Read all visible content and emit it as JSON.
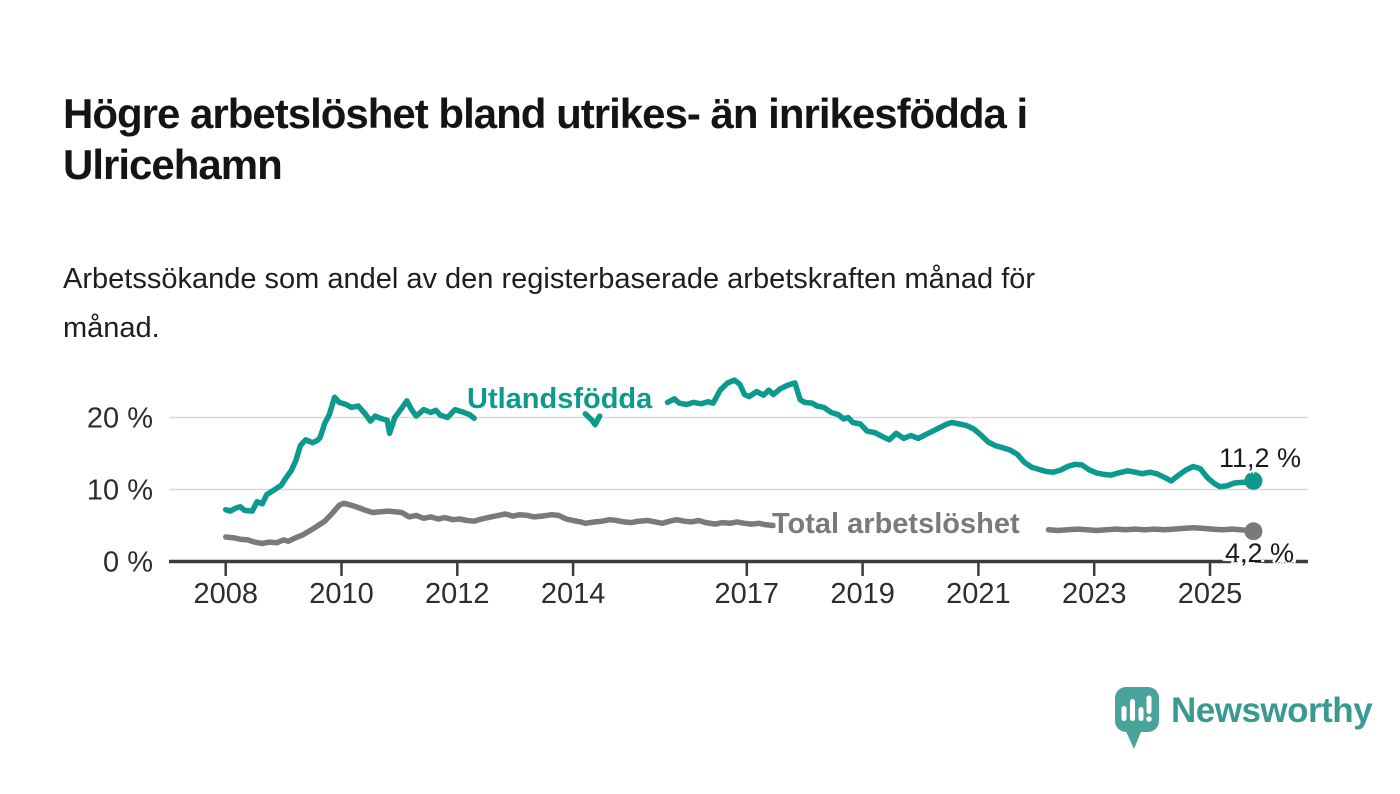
{
  "header": {
    "title_lines": [
      "Högre arbetslöshet bland utrikes- än inrikesfödda i",
      "Ulricehamn"
    ],
    "subtitle_lines": [
      "Arbetssökande som andel av den registerbaserade arbetskraften månad för",
      "månad."
    ]
  },
  "branding": {
    "wordmark": "Newsworthy",
    "logo_icon": "speech-bubble-bar-chart-icon",
    "color": "#3a9a91"
  },
  "chart_data": {
    "type": "line",
    "unit": "%",
    "grid": "horizontal-only",
    "x_axis": {
      "tick_values": [
        2008,
        2010,
        2012,
        2014,
        2017,
        2019,
        2021,
        2023,
        2025
      ],
      "tick_labels": [
        "2008",
        "2010",
        "2012",
        "2014",
        "2017",
        "2019",
        "2021",
        "2023",
        "2025"
      ],
      "range": [
        2007.0,
        2026.0
      ]
    },
    "y_axis": {
      "tick_values": [
        0,
        10,
        20
      ],
      "tick_labels": [
        "0 %",
        "10 %",
        "20 %"
      ],
      "gridline_values": [
        10,
        20
      ],
      "range": [
        0,
        26.5
      ]
    },
    "series": [
      {
        "name": "Utlandsfödda",
        "color": "#0d9a8e",
        "end_value": 11.2,
        "end_value_label": "11,2 %",
        "segments": [
          [
            [
              2008.0,
              7.2
            ],
            [
              2008.08,
              7.0
            ],
            [
              2008.17,
              7.4
            ],
            [
              2008.25,
              7.6
            ],
            [
              2008.33,
              7.1
            ],
            [
              2008.46,
              7.0
            ],
            [
              2008.54,
              8.3
            ],
            [
              2008.63,
              8.0
            ],
            [
              2008.71,
              9.3
            ],
            [
              2008.83,
              9.9
            ],
            [
              2008.96,
              10.6
            ],
            [
              2009.04,
              11.6
            ],
            [
              2009.13,
              12.6
            ],
            [
              2009.21,
              14.0
            ],
            [
              2009.29,
              16.1
            ],
            [
              2009.38,
              16.9
            ],
            [
              2009.5,
              16.5
            ],
            [
              2009.58,
              16.8
            ],
            [
              2009.63,
              17.2
            ],
            [
              2009.71,
              19.2
            ],
            [
              2009.79,
              20.4
            ],
            [
              2009.88,
              22.8
            ],
            [
              2009.96,
              22.1
            ],
            [
              2010.08,
              21.8
            ],
            [
              2010.17,
              21.4
            ],
            [
              2010.29,
              21.6
            ],
            [
              2010.42,
              20.4
            ],
            [
              2010.5,
              19.5
            ],
            [
              2010.58,
              20.2
            ],
            [
              2010.67,
              19.9
            ],
            [
              2010.79,
              19.6
            ],
            [
              2010.83,
              17.8
            ],
            [
              2010.92,
              20.0
            ],
            [
              2011.04,
              21.3
            ],
            [
              2011.13,
              22.3
            ],
            [
              2011.21,
              21.1
            ],
            [
              2011.29,
              20.2
            ],
            [
              2011.42,
              21.1
            ],
            [
              2011.54,
              20.7
            ],
            [
              2011.63,
              21.0
            ],
            [
              2011.71,
              20.3
            ],
            [
              2011.83,
              20.0
            ],
            [
              2011.96,
              21.1
            ],
            [
              2012.08,
              20.8
            ],
            [
              2012.21,
              20.4
            ],
            [
              2012.29,
              19.9
            ]
          ],
          [
            [
              2014.21,
              20.5
            ],
            [
              2014.33,
              19.6
            ],
            [
              2014.38,
              19.0
            ],
            [
              2014.46,
              20.2
            ]
          ],
          [
            [
              2015.63,
              22.1
            ],
            [
              2015.75,
              22.6
            ],
            [
              2015.83,
              22.0
            ],
            [
              2015.96,
              21.8
            ],
            [
              2016.08,
              22.1
            ],
            [
              2016.21,
              21.9
            ],
            [
              2016.33,
              22.2
            ],
            [
              2016.42,
              22.0
            ],
            [
              2016.54,
              23.8
            ],
            [
              2016.67,
              24.8
            ],
            [
              2016.79,
              25.2
            ],
            [
              2016.88,
              24.6
            ],
            [
              2016.96,
              23.2
            ],
            [
              2017.04,
              22.9
            ],
            [
              2017.17,
              23.6
            ],
            [
              2017.29,
              23.1
            ],
            [
              2017.38,
              23.8
            ],
            [
              2017.46,
              23.2
            ],
            [
              2017.58,
              24.0
            ],
            [
              2017.71,
              24.5
            ],
            [
              2017.83,
              24.8
            ],
            [
              2017.92,
              22.5
            ],
            [
              2018.0,
              22.1
            ],
            [
              2018.13,
              22.0
            ],
            [
              2018.21,
              21.6
            ],
            [
              2018.33,
              21.4
            ],
            [
              2018.46,
              20.7
            ],
            [
              2018.58,
              20.4
            ],
            [
              2018.67,
              19.8
            ],
            [
              2018.75,
              20.0
            ],
            [
              2018.83,
              19.3
            ],
            [
              2018.96,
              19.1
            ],
            [
              2019.08,
              18.1
            ],
            [
              2019.21,
              17.9
            ],
            [
              2019.33,
              17.4
            ],
            [
              2019.46,
              16.9
            ],
            [
              2019.58,
              17.8
            ],
            [
              2019.71,
              17.1
            ],
            [
              2019.83,
              17.5
            ],
            [
              2019.96,
              17.1
            ],
            [
              2020.08,
              17.6
            ],
            [
              2020.21,
              18.1
            ],
            [
              2020.33,
              18.6
            ],
            [
              2020.46,
              19.1
            ],
            [
              2020.54,
              19.3
            ],
            [
              2020.67,
              19.1
            ],
            [
              2020.79,
              18.9
            ],
            [
              2020.92,
              18.4
            ],
            [
              2021.04,
              17.6
            ],
            [
              2021.17,
              16.6
            ],
            [
              2021.29,
              16.1
            ],
            [
              2021.42,
              15.8
            ],
            [
              2021.54,
              15.5
            ],
            [
              2021.67,
              14.9
            ],
            [
              2021.79,
              13.8
            ],
            [
              2021.92,
              13.1
            ],
            [
              2022.04,
              12.8
            ],
            [
              2022.17,
              12.5
            ],
            [
              2022.29,
              12.4
            ],
            [
              2022.42,
              12.7
            ],
            [
              2022.54,
              13.2
            ],
            [
              2022.67,
              13.5
            ],
            [
              2022.79,
              13.4
            ],
            [
              2022.92,
              12.7
            ],
            [
              2023.04,
              12.3
            ],
            [
              2023.17,
              12.1
            ],
            [
              2023.29,
              12.0
            ],
            [
              2023.42,
              12.3
            ],
            [
              2023.58,
              12.6
            ],
            [
              2023.71,
              12.4
            ],
            [
              2023.83,
              12.2
            ],
            [
              2023.96,
              12.4
            ],
            [
              2024.08,
              12.2
            ],
            [
              2024.21,
              11.7
            ],
            [
              2024.33,
              11.2
            ],
            [
              2024.46,
              12.0
            ],
            [
              2024.58,
              12.7
            ],
            [
              2024.71,
              13.2
            ],
            [
              2024.83,
              12.9
            ],
            [
              2024.96,
              11.6
            ],
            [
              2025.08,
              10.8
            ],
            [
              2025.17,
              10.4
            ],
            [
              2025.29,
              10.5
            ],
            [
              2025.42,
              10.9
            ],
            [
              2025.58,
              11.0
            ],
            [
              2025.75,
              11.2
            ]
          ]
        ]
      },
      {
        "name": "Total arbetslöshet",
        "color": "#7a7a7a",
        "end_value": 4.2,
        "end_value_label": "4,2 %",
        "segments": [
          [
            [
              2008.0,
              3.4
            ],
            [
              2008.13,
              3.3
            ],
            [
              2008.25,
              3.1
            ],
            [
              2008.38,
              3.0
            ],
            [
              2008.5,
              2.7
            ],
            [
              2008.63,
              2.5
            ],
            [
              2008.75,
              2.7
            ],
            [
              2008.88,
              2.6
            ],
            [
              2009.0,
              3.0
            ],
            [
              2009.08,
              2.8
            ],
            [
              2009.21,
              3.3
            ],
            [
              2009.33,
              3.7
            ],
            [
              2009.46,
              4.3
            ],
            [
              2009.58,
              4.9
            ],
            [
              2009.71,
              5.6
            ],
            [
              2009.83,
              6.6
            ],
            [
              2009.96,
              7.8
            ],
            [
              2010.04,
              8.1
            ],
            [
              2010.17,
              7.8
            ],
            [
              2010.29,
              7.5
            ],
            [
              2010.42,
              7.1
            ],
            [
              2010.54,
              6.8
            ],
            [
              2010.67,
              6.9
            ],
            [
              2010.79,
              7.0
            ],
            [
              2010.92,
              6.9
            ],
            [
              2011.04,
              6.8
            ],
            [
              2011.17,
              6.2
            ],
            [
              2011.29,
              6.4
            ],
            [
              2011.42,
              6.0
            ],
            [
              2011.54,
              6.2
            ],
            [
              2011.67,
              5.9
            ],
            [
              2011.79,
              6.1
            ],
            [
              2011.92,
              5.8
            ],
            [
              2012.04,
              5.9
            ],
            [
              2012.17,
              5.7
            ],
            [
              2012.29,
              5.6
            ],
            [
              2012.42,
              5.9
            ],
            [
              2012.58,
              6.2
            ],
            [
              2012.71,
              6.4
            ],
            [
              2012.83,
              6.6
            ],
            [
              2012.96,
              6.3
            ],
            [
              2013.08,
              6.5
            ],
            [
              2013.21,
              6.4
            ],
            [
              2013.33,
              6.2
            ],
            [
              2013.46,
              6.3
            ],
            [
              2013.63,
              6.5
            ],
            [
              2013.75,
              6.4
            ],
            [
              2013.88,
              5.9
            ],
            [
              2014.0,
              5.7
            ],
            [
              2014.13,
              5.5
            ],
            [
              2014.21,
              5.3
            ],
            [
              2014.38,
              5.5
            ],
            [
              2014.5,
              5.6
            ],
            [
              2014.63,
              5.8
            ],
            [
              2014.75,
              5.7
            ],
            [
              2014.88,
              5.5
            ],
            [
              2015.0,
              5.4
            ],
            [
              2015.13,
              5.6
            ],
            [
              2015.29,
              5.7
            ],
            [
              2015.42,
              5.5
            ],
            [
              2015.54,
              5.3
            ],
            [
              2015.67,
              5.6
            ],
            [
              2015.79,
              5.8
            ],
            [
              2015.92,
              5.6
            ],
            [
              2016.04,
              5.5
            ],
            [
              2016.17,
              5.7
            ],
            [
              2016.29,
              5.4
            ],
            [
              2016.46,
              5.2
            ],
            [
              2016.58,
              5.4
            ],
            [
              2016.71,
              5.3
            ],
            [
              2016.83,
              5.5
            ],
            [
              2016.96,
              5.3
            ],
            [
              2017.08,
              5.2
            ],
            [
              2017.21,
              5.3
            ],
            [
              2017.33,
              5.1
            ],
            [
              2017.46,
              5.0
            ]
          ],
          [
            [
              2022.21,
              4.4
            ],
            [
              2022.38,
              4.3
            ],
            [
              2022.54,
              4.4
            ],
            [
              2022.71,
              4.5
            ],
            [
              2022.88,
              4.4
            ],
            [
              2023.04,
              4.3
            ],
            [
              2023.21,
              4.4
            ],
            [
              2023.38,
              4.5
            ],
            [
              2023.54,
              4.4
            ],
            [
              2023.71,
              4.5
            ],
            [
              2023.88,
              4.4
            ],
            [
              2024.04,
              4.5
            ],
            [
              2024.21,
              4.4
            ],
            [
              2024.38,
              4.5
            ],
            [
              2024.54,
              4.6
            ],
            [
              2024.71,
              4.7
            ],
            [
              2024.88,
              4.6
            ],
            [
              2025.04,
              4.5
            ],
            [
              2025.21,
              4.4
            ],
            [
              2025.38,
              4.5
            ],
            [
              2025.54,
              4.4
            ],
            [
              2025.75,
              4.2
            ]
          ]
        ]
      }
    ]
  }
}
